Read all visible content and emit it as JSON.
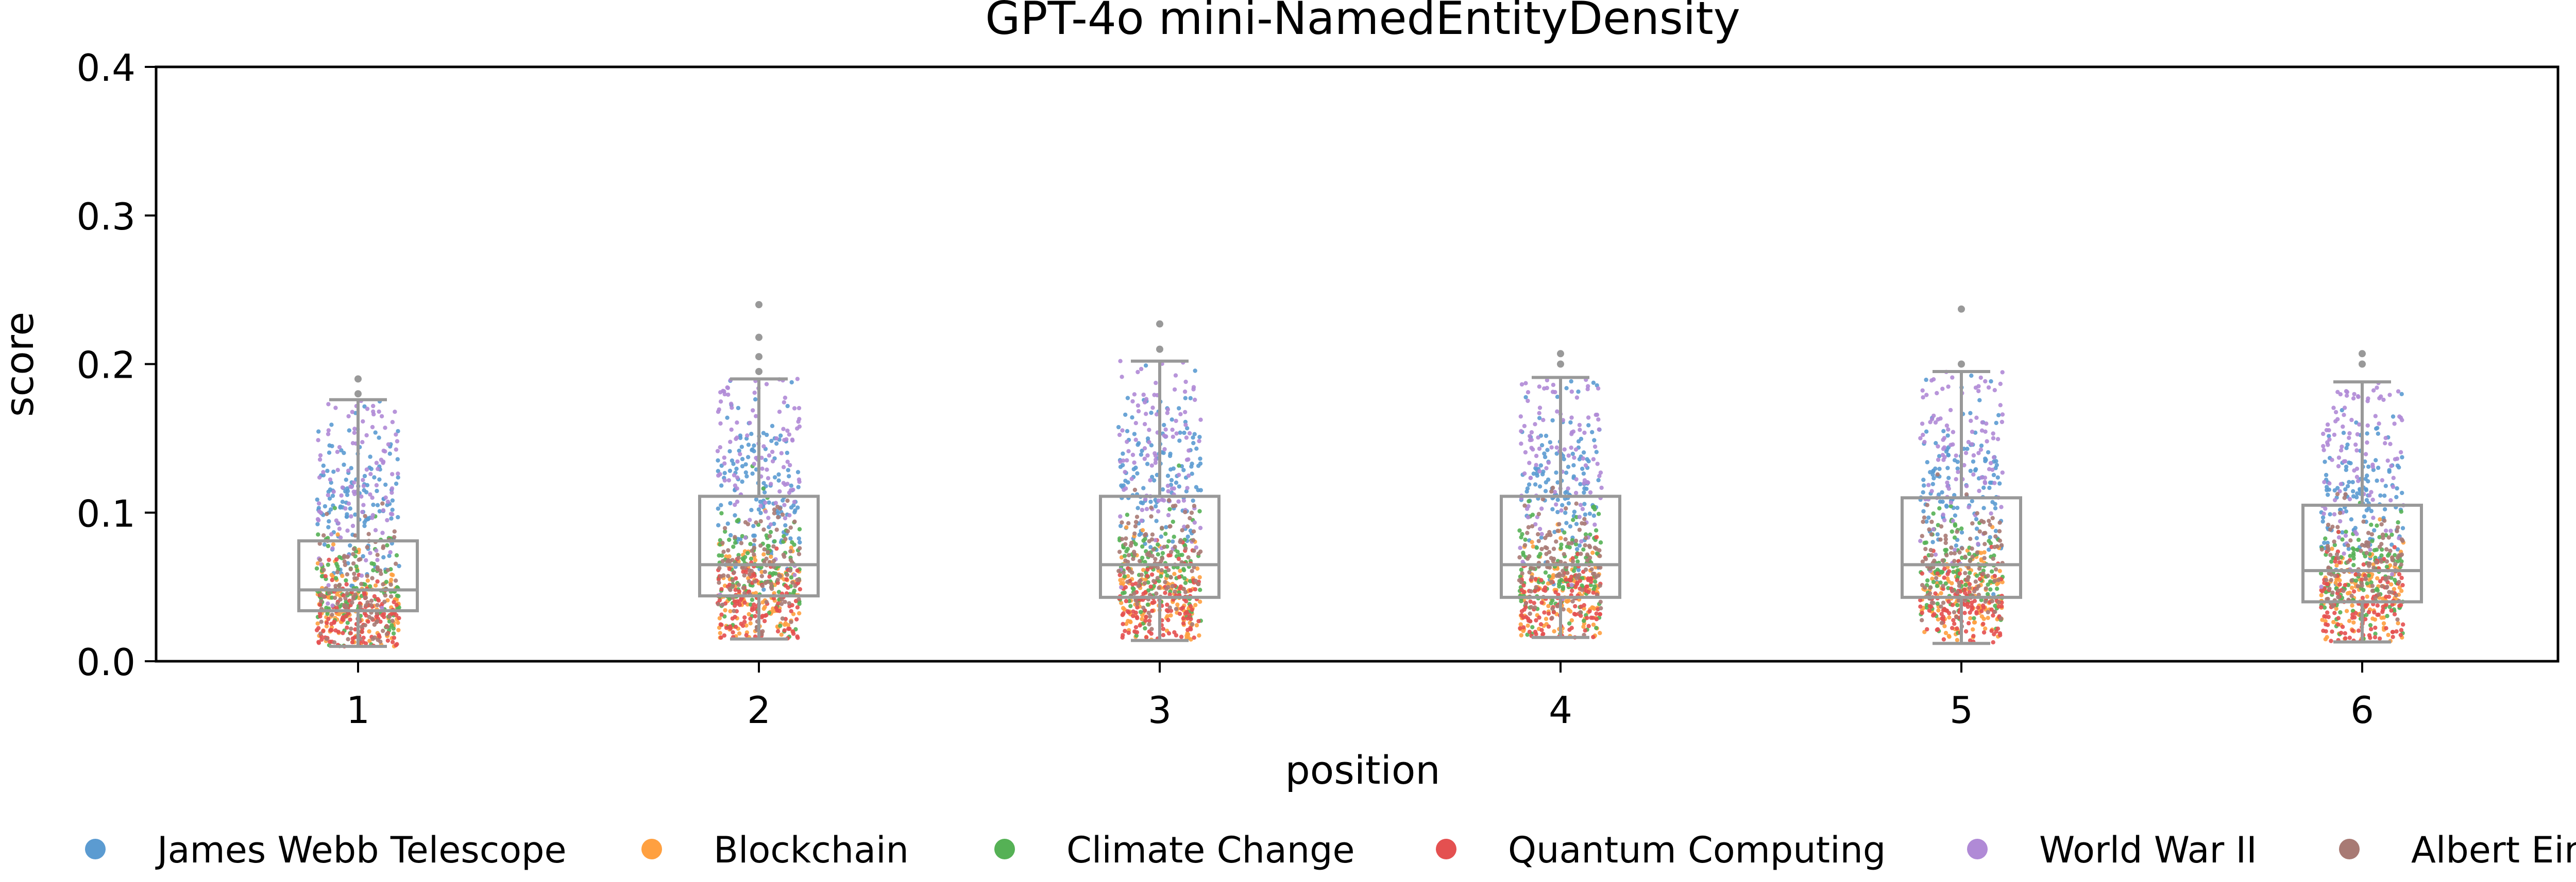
{
  "chart_data": {
    "type": "box-strip",
    "title": "GPT-4o mini-NamedEntityDensity",
    "xlabel": "position",
    "ylabel": "score",
    "categories": [
      "1",
      "2",
      "3",
      "4",
      "5",
      "6"
    ],
    "ylim": [
      0.0,
      0.4
    ],
    "yticks": [
      "0.0",
      "0.1",
      "0.2",
      "0.3",
      "0.4"
    ],
    "grid": false,
    "legend_position": "bottom",
    "box_color": "#999999",
    "boxes": [
      {
        "position": "1",
        "q1": 0.034,
        "median": 0.048,
        "q3": 0.081,
        "whisker_low": 0.01,
        "whisker_high": 0.176,
        "outliers": [
          0.19,
          0.18
        ]
      },
      {
        "position": "2",
        "q1": 0.044,
        "median": 0.065,
        "q3": 0.111,
        "whisker_low": 0.015,
        "whisker_high": 0.19,
        "outliers": [
          0.195,
          0.205,
          0.218,
          0.24
        ]
      },
      {
        "position": "3",
        "q1": 0.043,
        "median": 0.065,
        "q3": 0.111,
        "whisker_low": 0.014,
        "whisker_high": 0.202,
        "outliers": [
          0.21,
          0.227
        ]
      },
      {
        "position": "4",
        "q1": 0.043,
        "median": 0.065,
        "q3": 0.111,
        "whisker_low": 0.016,
        "whisker_high": 0.191,
        "outliers": [
          0.2,
          0.207
        ]
      },
      {
        "position": "5",
        "q1": 0.043,
        "median": 0.065,
        "q3": 0.11,
        "whisker_low": 0.012,
        "whisker_high": 0.195,
        "outliers": [
          0.2,
          0.237
        ]
      },
      {
        "position": "6",
        "q1": 0.04,
        "median": 0.061,
        "q3": 0.105,
        "whisker_low": 0.013,
        "whisker_high": 0.188,
        "outliers": [
          0.2,
          0.207
        ]
      }
    ],
    "series": [
      {
        "name": "James Webb Telescope",
        "color": "#5b9bd1",
        "center": [
          0.11,
          0.12,
          0.12,
          0.12,
          0.12,
          0.11
        ],
        "spread": 0.028,
        "count": 130
      },
      {
        "name": "Blockchain",
        "color": "#ffa040",
        "center": [
          0.035,
          0.045,
          0.045,
          0.045,
          0.045,
          0.042
        ],
        "spread": 0.018,
        "count": 120
      },
      {
        "name": "Climate Change",
        "color": "#55b155",
        "center": [
          0.045,
          0.06,
          0.06,
          0.06,
          0.058,
          0.058
        ],
        "spread": 0.02,
        "count": 120
      },
      {
        "name": "Quantum Computing",
        "color": "#e45050",
        "center": [
          0.03,
          0.038,
          0.038,
          0.04,
          0.038,
          0.036
        ],
        "spread": 0.016,
        "count": 120
      },
      {
        "name": "World War II",
        "color": "#b08ad6",
        "center": [
          0.12,
          0.14,
          0.14,
          0.14,
          0.14,
          0.135
        ],
        "spread": 0.035,
        "count": 110
      },
      {
        "name": "Albert Einstein",
        "color": "#a87a74",
        "center": [
          0.05,
          0.065,
          0.068,
          0.066,
          0.065,
          0.064
        ],
        "spread": 0.02,
        "count": 110
      }
    ]
  }
}
